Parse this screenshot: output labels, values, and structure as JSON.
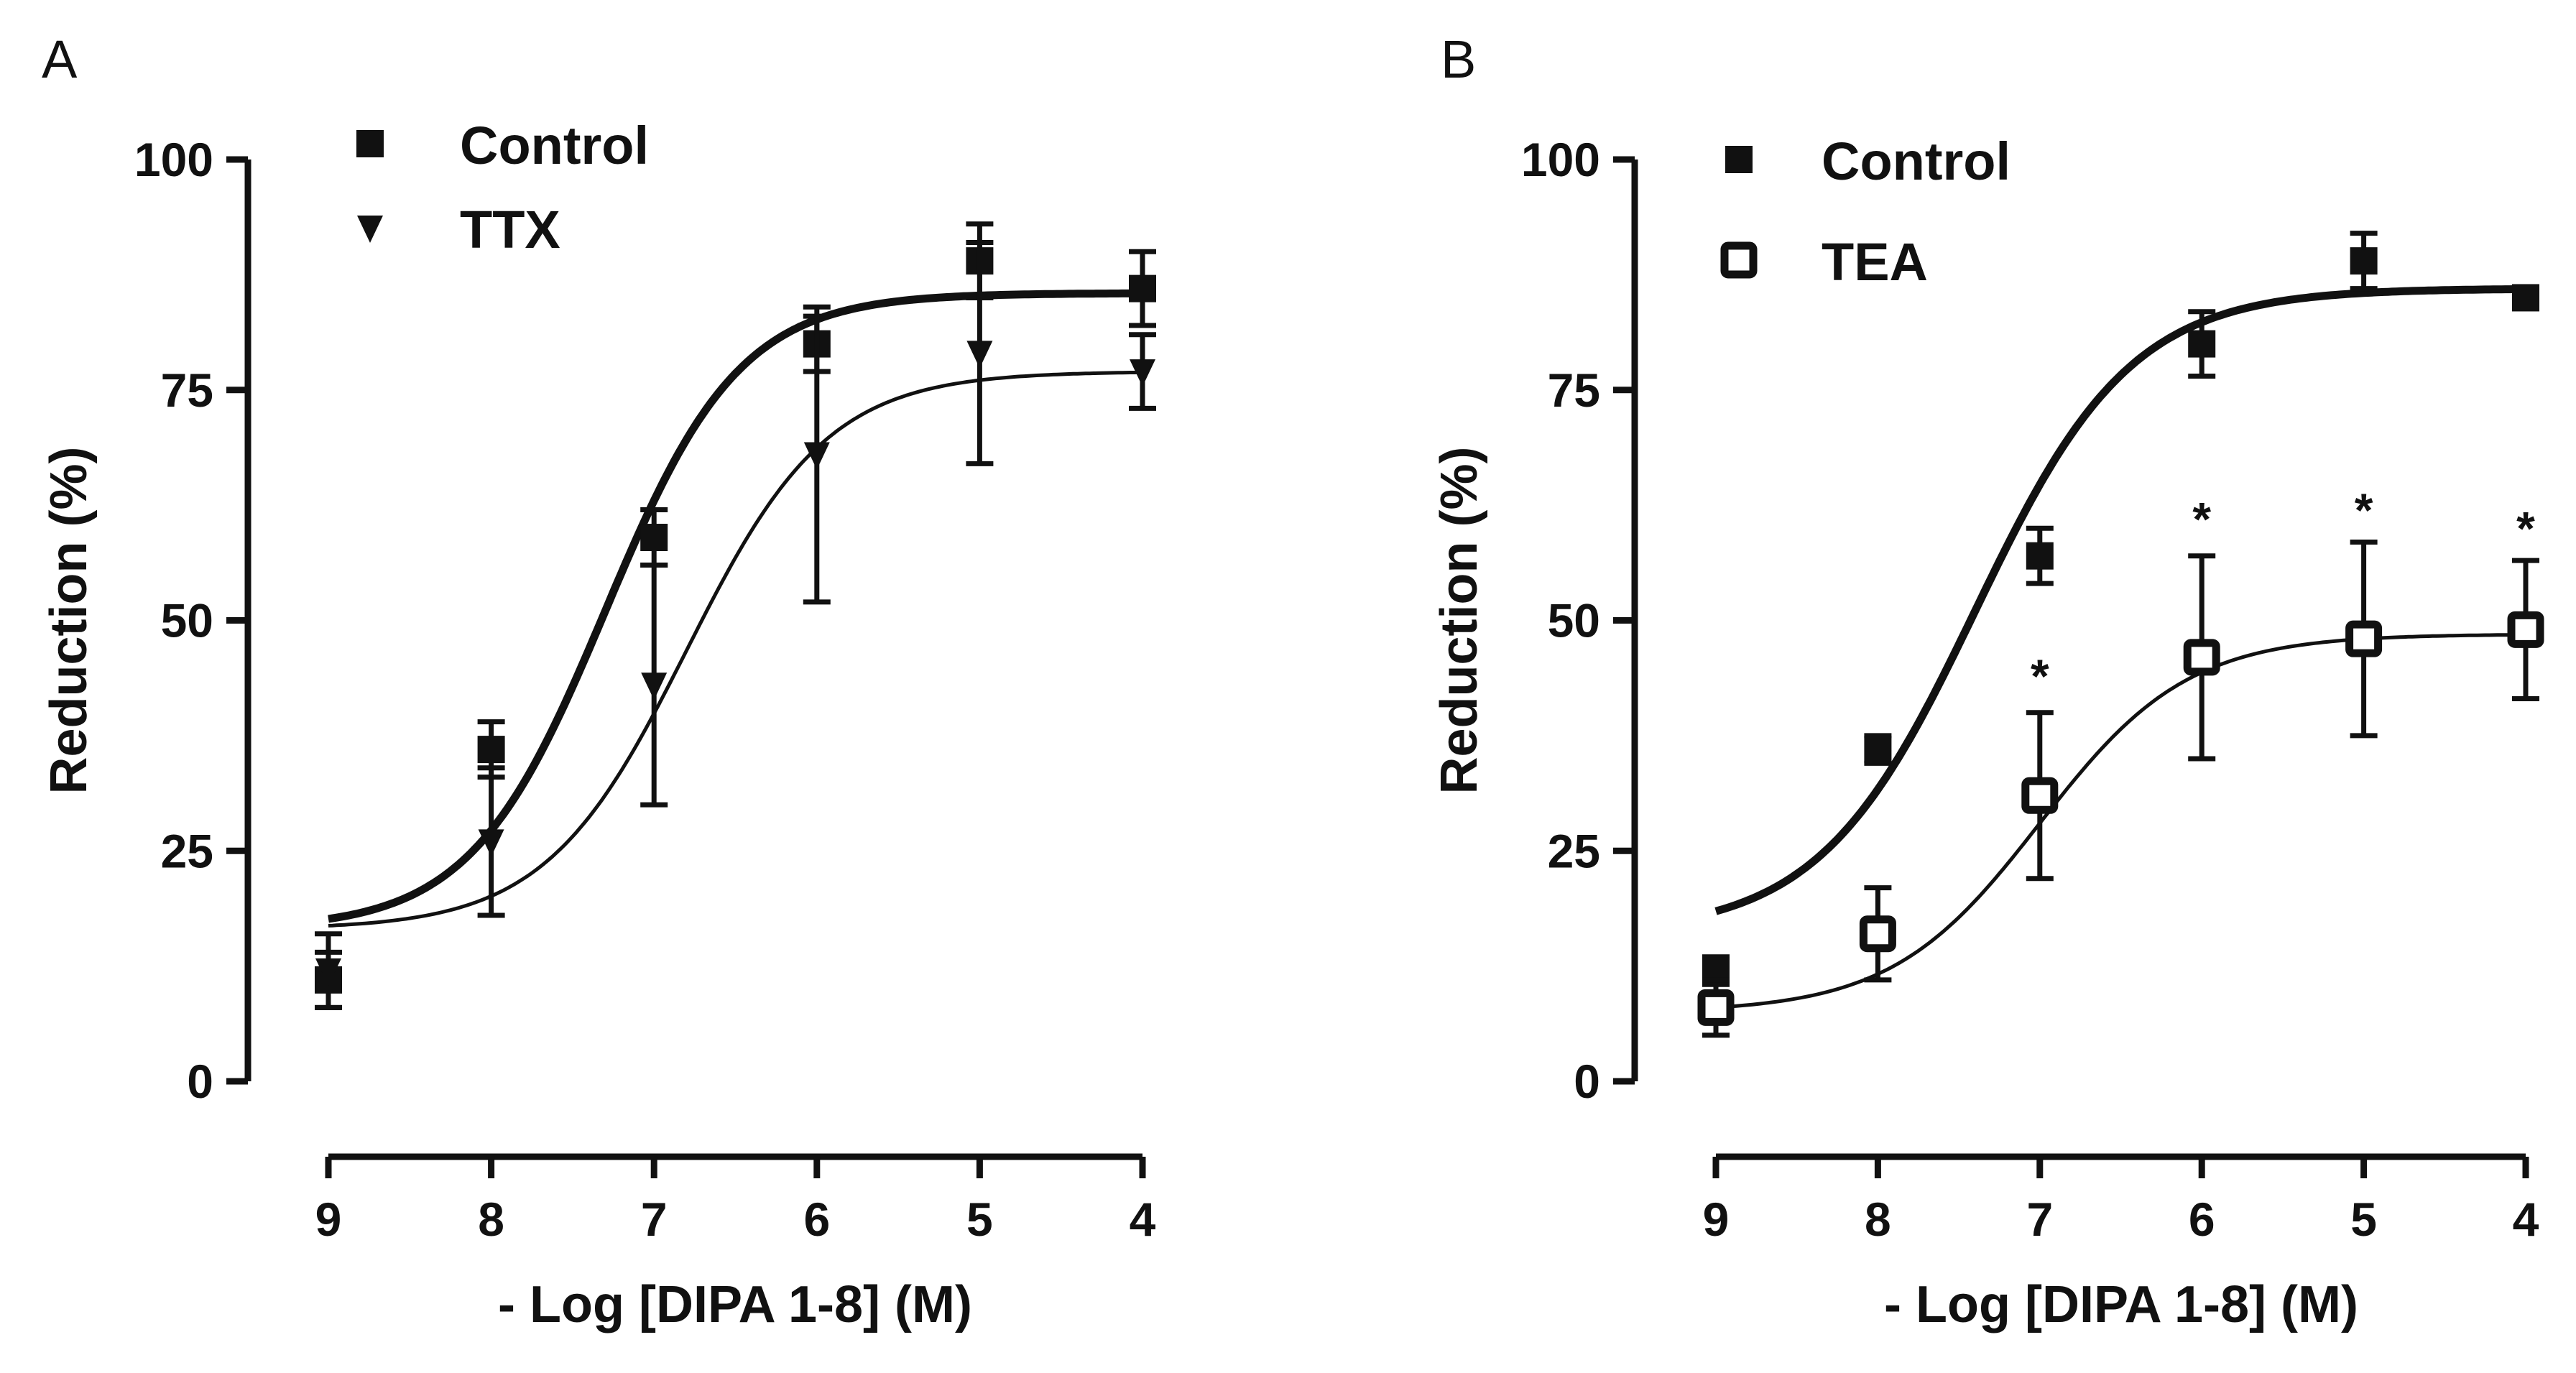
{
  "chart_data": [
    {
      "type": "scatter",
      "panel": "A",
      "xlabel": "- Log [DIPA 1-8] (M)",
      "ylabel": "Reduction (%)",
      "x_ticks": [
        9,
        8,
        7,
        6,
        5,
        4
      ],
      "y_ticks": [
        0,
        25,
        50,
        75,
        100
      ],
      "xlim": [
        9,
        4
      ],
      "ylim": [
        0,
        100
      ],
      "legend_position": "top-left",
      "series": [
        {
          "name": "Control",
          "marker": "square-filled",
          "x": [
            9,
            8,
            7,
            6,
            5,
            4
          ],
          "y": [
            11,
            36,
            59,
            80,
            89,
            86
          ],
          "err": [
            3,
            3,
            3,
            3,
            4,
            4
          ],
          "fit": {
            "bottom": 16.5,
            "top": 85.5,
            "logEC50": 7.3,
            "hill": 1.05,
            "style": "thick"
          }
        },
        {
          "name": "TTX",
          "marker": "triangle-down-filled",
          "x": [
            9,
            8,
            7,
            6,
            5,
            4
          ],
          "y": [
            12,
            26,
            43,
            68,
            79,
            77
          ],
          "err": [
            4,
            8,
            13,
            16,
            12,
            4
          ],
          "fit": {
            "bottom": 16.5,
            "top": 77,
            "logEC50": 6.8,
            "hill": 1.0,
            "style": "thin"
          }
        }
      ]
    },
    {
      "type": "scatter",
      "panel": "B",
      "xlabel": "- Log [DIPA 1-8] (M)",
      "ylabel": "Reduction (%)",
      "x_ticks": [
        9,
        8,
        7,
        6,
        5,
        4
      ],
      "y_ticks": [
        0,
        25,
        50,
        75,
        100
      ],
      "xlim": [
        9,
        4
      ],
      "ylim": [
        0,
        100
      ],
      "legend_position": "top-left",
      "series": [
        {
          "name": "Control",
          "marker": "square-filled",
          "x": [
            9,
            8,
            7,
            6,
            5,
            4
          ],
          "y": [
            12,
            36,
            57,
            80,
            89,
            85
          ],
          "err": [
            1.5,
            1.5,
            3,
            3.5,
            3,
            1
          ],
          "fit": {
            "bottom": 16,
            "top": 86,
            "logEC50": 7.4,
            "hill": 0.9,
            "style": "thick"
          }
        },
        {
          "name": "TEA",
          "marker": "square-open",
          "x": [
            9,
            8,
            7,
            6,
            5,
            4
          ],
          "y": [
            8,
            16,
            31,
            46,
            48,
            49
          ],
          "err": [
            3,
            5,
            9,
            11,
            10.5,
            7.5
          ],
          "fit": {
            "bottom": 7.5,
            "top": 48.5,
            "logEC50": 7.0,
            "hill": 0.95,
            "style": "thin"
          }
        }
      ],
      "annotations": [
        {
          "text": "*",
          "x": 7,
          "y": 40
        },
        {
          "text": "*",
          "x": 6,
          "y": 57
        },
        {
          "text": "*",
          "x": 5,
          "y": 58
        },
        {
          "text": "*",
          "x": 4,
          "y": 56
        }
      ]
    }
  ],
  "panels": [
    {
      "letter": "A"
    },
    {
      "letter": "B"
    }
  ]
}
